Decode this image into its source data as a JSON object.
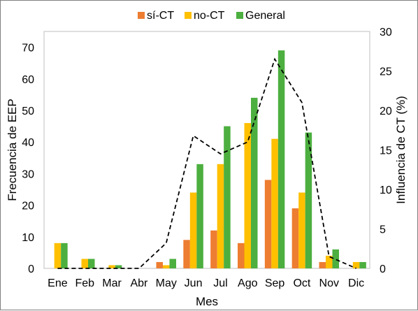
{
  "chart_data": {
    "type": "bar",
    "categories": [
      "Ene",
      "Feb",
      "Mar",
      "Abr",
      "May",
      "Jun",
      "Jul",
      "Ago",
      "Sep",
      "Oct",
      "Nov",
      "Dic"
    ],
    "series": [
      {
        "name": "sí-CT",
        "color": "#ED7D31",
        "values": [
          0,
          0,
          0,
          0,
          2,
          9,
          12,
          8,
          28,
          19,
          2,
          0
        ]
      },
      {
        "name": "no-CT",
        "color": "#FFC000",
        "values": [
          8,
          3,
          1,
          0,
          1,
          24,
          33,
          46,
          41,
          24,
          4,
          2
        ]
      },
      {
        "name": "General",
        "color": "#4CAF3F",
        "values": [
          8,
          3,
          1,
          0,
          3,
          33,
          45,
          54,
          69,
          43,
          6,
          2
        ]
      }
    ],
    "line_series": {
      "name": "Influencia de CT (%)",
      "axis": "right",
      "style": "dashed",
      "color": "#000000",
      "values": [
        0,
        0,
        0,
        0,
        3.2,
        16.8,
        14.5,
        16.0,
        26.5,
        21.0,
        1.5,
        0
      ]
    },
    "xlabel": "Mes",
    "ylabel": "Frecuencia de EEP",
    "ylabel_right": "Influencia de CT (%)",
    "ylim": [
      0,
      75
    ],
    "y_ticks": [
      0,
      10,
      20,
      30,
      40,
      50,
      60,
      70
    ],
    "ylim_right": [
      0,
      30
    ],
    "y_ticks_right": [
      0,
      5,
      10,
      15,
      20,
      25,
      30
    ],
    "legend_position": "top-center",
    "grid": false
  }
}
